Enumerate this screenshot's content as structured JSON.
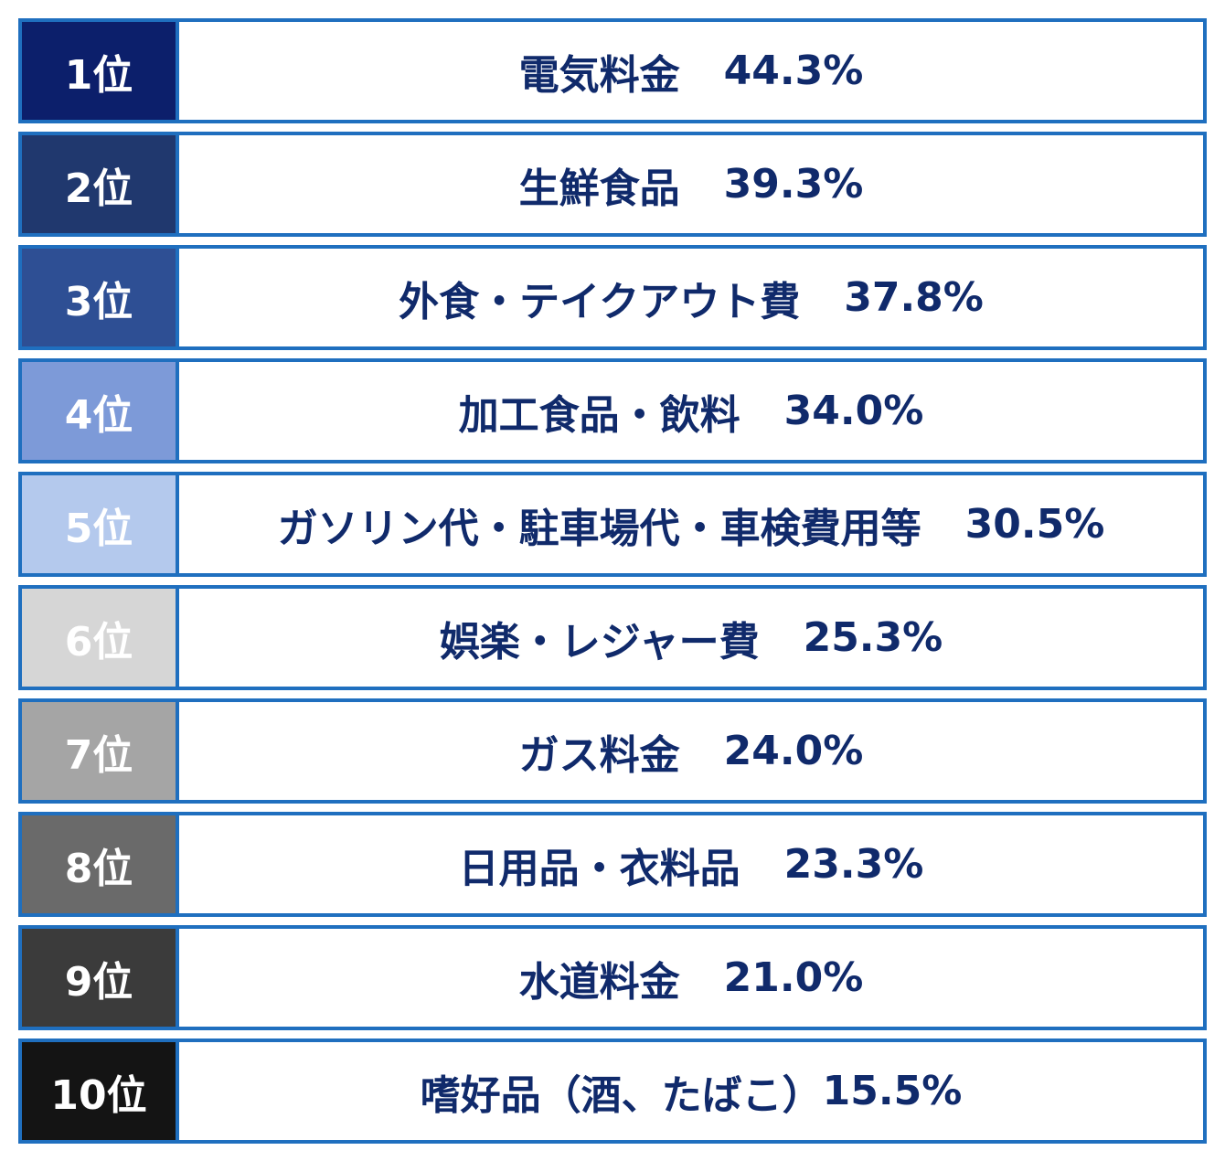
{
  "chart_data": {
    "type": "table",
    "rows": [
      {
        "rank": "1位",
        "item": "電気料金",
        "value": "44.3%",
        "percent": 44.3,
        "color": "#0c1f6b",
        "text_color": "#ffffff"
      },
      {
        "rank": "2位",
        "item": "生鮮食品",
        "value": "39.3%",
        "percent": 39.3,
        "color": "#20386e",
        "text_color": "#ffffff"
      },
      {
        "rank": "3位",
        "item": "外食・テイクアウト費",
        "value": "37.8%",
        "percent": 37.8,
        "color": "#2e4f94",
        "text_color": "#ffffff"
      },
      {
        "rank": "4位",
        "item": "加工食品・飲料",
        "value": "34.0%",
        "percent": 34.0,
        "color": "#7d9ad8",
        "text_color": "#ffffff"
      },
      {
        "rank": "5位",
        "item": "ガソリン代・駐車場代・車検費用等",
        "value": "30.5%",
        "percent": 30.5,
        "color": "#b4c9ed",
        "text_color": "#ffffff"
      },
      {
        "rank": "6位",
        "item": "娯楽・レジャー費",
        "value": "25.3%",
        "percent": 25.3,
        "color": "#d6d6d6",
        "text_color": "#ffffff"
      },
      {
        "rank": "7位",
        "item": "ガス料金",
        "value": "24.0%",
        "percent": 24.0,
        "color": "#a5a5a5",
        "text_color": "#ffffff"
      },
      {
        "rank": "8位",
        "item": "日用品・衣料品",
        "value": "23.3%",
        "percent": 23.3,
        "color": "#6a6a6a",
        "text_color": "#ffffff"
      },
      {
        "rank": "9位",
        "item": "水道料金",
        "value": "21.0%",
        "percent": 21.0,
        "color": "#3b3b3b",
        "text_color": "#ffffff"
      },
      {
        "rank": "10位",
        "item": "嗜好品（酒、たばこ）",
        "value": "15.5%",
        "percent": 15.5,
        "color": "#141414",
        "text_color": "#ffffff"
      }
    ]
  },
  "theme": {
    "border_color": "#1f6fbf",
    "label_color": "#102a6b"
  }
}
